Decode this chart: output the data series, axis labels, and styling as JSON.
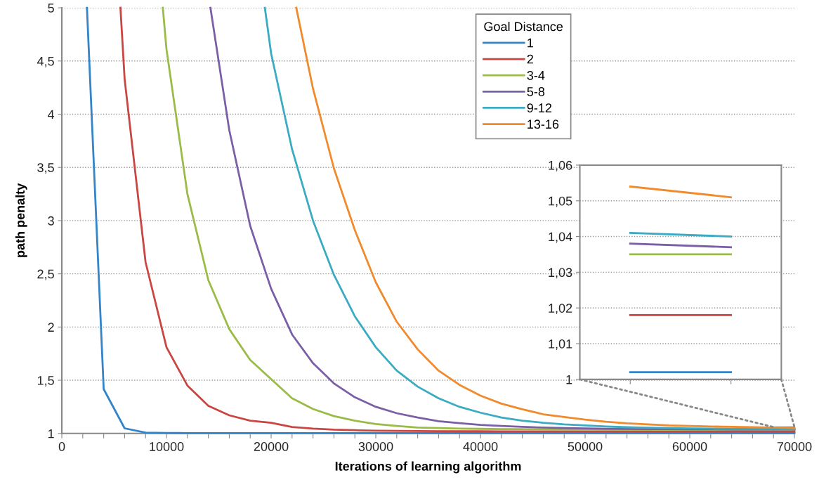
{
  "chart_data": [
    {
      "type": "line",
      "xlabel": "Iterations of learning algorithm",
      "ylabel": "path penalty",
      "legend_title": "Goal Distance",
      "legend": "top",
      "grid": "y",
      "line_style": "solid",
      "marker": "none",
      "xlim": [
        0,
        70000
      ],
      "ylim": [
        1,
        5
      ],
      "xticks": [
        0,
        {
          "value": 2000,
          "label": null
        },
        {
          "value": 4000,
          "label": null
        },
        {
          "value": 6000,
          "label": null
        },
        {
          "value": 8000,
          "label": null
        },
        10000,
        {
          "value": 12000,
          "label": null
        },
        {
          "value": 14000,
          "label": null
        },
        {
          "value": 16000,
          "label": null
        },
        {
          "value": 18000,
          "label": null
        },
        20000,
        {
          "value": 22000,
          "label": null
        },
        {
          "value": 24000,
          "label": null
        },
        {
          "value": 26000,
          "label": null
        },
        {
          "value": 28000,
          "label": null
        },
        30000,
        {
          "value": 32000,
          "label": null
        },
        {
          "value": 34000,
          "label": null
        },
        {
          "value": 36000,
          "label": null
        },
        {
          "value": 38000,
          "label": null
        },
        40000,
        {
          "value": 42000,
          "label": null
        },
        {
          "value": 44000,
          "label": null
        },
        {
          "value": 46000,
          "label": null
        },
        {
          "value": 48000,
          "label": null
        },
        50000,
        {
          "value": 52000,
          "label": null
        },
        {
          "value": 54000,
          "label": null
        },
        {
          "value": 56000,
          "label": null
        },
        {
          "value": 58000,
          "label": null
        },
        60000,
        {
          "value": 62000,
          "label": null
        },
        {
          "value": 64000,
          "label": null
        },
        {
          "value": 66000,
          "label": null
        },
        {
          "value": 68000,
          "label": null
        },
        70000
      ],
      "yticks": [
        1,
        {
          "value": 1.5,
          "label": "1,5"
        },
        2,
        {
          "value": 2.5,
          "label": "2,5"
        },
        3,
        {
          "value": 3.5,
          "label": "3,5"
        },
        4,
        {
          "value": 4.5,
          "label": "4,5"
        },
        5
      ],
      "series": [
        {
          "name": "1",
          "color": "#3384c8",
          "x": [
            2400,
            4000,
            6000,
            8000,
            10000,
            12000,
            14000,
            16000,
            18000,
            20000,
            22000,
            24000,
            26000,
            28000,
            30000,
            32000,
            34000,
            36000,
            38000,
            40000,
            42000,
            44000,
            46000,
            48000,
            50000,
            52000,
            54000,
            56000,
            58000,
            60000,
            62000,
            64000,
            66000,
            68000,
            70000
          ],
          "values": [
            5,
            1.416,
            1.048,
            1.008,
            1.004,
            1.003,
            1.002,
            1.002,
            1.002,
            1.002,
            1.002,
            1.002,
            1.002,
            1.002,
            1.002,
            1.002,
            1.002,
            1.002,
            1.002,
            1.002,
            1.002,
            1.002,
            1.002,
            1.002,
            1.002,
            1.002,
            1.002,
            1.002,
            1.002,
            1.002,
            1.002,
            1.002,
            1.002,
            1.002,
            1.002
          ]
        },
        {
          "name": "2",
          "color": "#c94643",
          "x": [
            5600,
            6000,
            8000,
            10000,
            12000,
            14000,
            16000,
            18000,
            20000,
            22000,
            24000,
            26000,
            28000,
            30000,
            32000,
            34000,
            36000,
            38000,
            40000,
            42000,
            44000,
            46000,
            48000,
            50000,
            52000,
            54000,
            56000,
            58000,
            60000,
            62000,
            64000,
            66000,
            68000,
            70000
          ],
          "values": [
            5,
            4.33,
            2.61,
            1.81,
            1.45,
            1.26,
            1.17,
            1.12,
            1.1,
            1.06,
            1.045,
            1.035,
            1.03,
            1.026,
            1.024,
            1.022,
            1.021,
            1.02,
            1.02,
            1.019,
            1.019,
            1.019,
            1.019,
            1.019,
            1.019,
            1.019,
            1.019,
            1.019,
            1.019,
            1.019,
            1.019,
            1.019,
            1.018,
            1.018
          ]
        },
        {
          "name": "3-4",
          "color": "#9bbb47",
          "x": [
            9650,
            10000,
            12000,
            14000,
            16000,
            18000,
            20000,
            22000,
            24000,
            26000,
            28000,
            30000,
            32000,
            34000,
            36000,
            38000,
            40000,
            42000,
            44000,
            46000,
            48000,
            50000,
            52000,
            54000,
            56000,
            58000,
            60000,
            62000,
            64000,
            66000,
            68000,
            70000
          ],
          "values": [
            5,
            4.61,
            3.25,
            2.44,
            1.98,
            1.69,
            1.51,
            1.33,
            1.23,
            1.163,
            1.12,
            1.088,
            1.07,
            1.056,
            1.05,
            1.046,
            1.043,
            1.041,
            1.04,
            1.039,
            1.038,
            1.037,
            1.037,
            1.036,
            1.036,
            1.036,
            1.036,
            1.036,
            1.035,
            1.035,
            1.035,
            1.035
          ]
        },
        {
          "name": "5-8",
          "color": "#7b5fa6",
          "x": [
            14200,
            16000,
            18000,
            20000,
            22000,
            24000,
            26000,
            28000,
            30000,
            32000,
            34000,
            36000,
            38000,
            40000,
            42000,
            44000,
            46000,
            48000,
            50000,
            52000,
            54000,
            56000,
            58000,
            60000,
            62000,
            64000,
            66000,
            68000,
            70000
          ],
          "values": [
            5,
            3.85,
            2.95,
            2.36,
            1.93,
            1.66,
            1.47,
            1.34,
            1.25,
            1.19,
            1.15,
            1.115,
            1.096,
            1.08,
            1.07,
            1.062,
            1.055,
            1.05,
            1.047,
            1.044,
            1.042,
            1.041,
            1.04,
            1.039,
            1.039,
            1.038,
            1.038,
            1.038,
            1.037
          ]
        },
        {
          "name": "9-12",
          "color": "#3aabc2",
          "x": [
            19400,
            20000,
            22000,
            24000,
            26000,
            28000,
            30000,
            32000,
            34000,
            36000,
            38000,
            40000,
            42000,
            44000,
            46000,
            48000,
            50000,
            52000,
            54000,
            56000,
            58000,
            60000,
            62000,
            64000,
            66000,
            68000,
            70000
          ],
          "values": [
            5,
            4.57,
            3.67,
            3.0,
            2.49,
            2.1,
            1.81,
            1.59,
            1.44,
            1.33,
            1.25,
            1.195,
            1.15,
            1.12,
            1.1,
            1.085,
            1.075,
            1.065,
            1.058,
            1.053,
            1.05,
            1.047,
            1.045,
            1.043,
            1.042,
            1.042,
            1.04
          ]
        },
        {
          "name": "13-16",
          "color": "#f08a2c",
          "x": [
            22400,
            24000,
            26000,
            28000,
            30000,
            32000,
            34000,
            36000,
            38000,
            40000,
            42000,
            44000,
            46000,
            48000,
            50000,
            52000,
            54000,
            56000,
            58000,
            60000,
            62000,
            64000,
            66000,
            68000,
            70000
          ],
          "values": [
            5,
            4.24,
            3.49,
            2.91,
            2.42,
            2.05,
            1.79,
            1.59,
            1.456,
            1.355,
            1.28,
            1.227,
            1.18,
            1.155,
            1.13,
            1.11,
            1.095,
            1.085,
            1.075,
            1.07,
            1.065,
            1.062,
            1.058,
            1.055,
            1.05
          ]
        }
      ]
    },
    {
      "type": "line",
      "grid": "y",
      "line_style": "solid",
      "marker": "none",
      "tick_labels": "y",
      "ylim": [
        1,
        1.06
      ],
      "yticks": [
        1,
        {
          "value": 1.01,
          "label": "1,01"
        },
        {
          "value": 1.02,
          "label": "1,02"
        },
        {
          "value": 1.03,
          "label": "1,03"
        },
        {
          "value": 1.04,
          "label": "1,04"
        },
        {
          "value": 1.05,
          "label": "1,05"
        },
        {
          "value": 1.06,
          "label": "1,06"
        }
      ],
      "categories": [
        null,
        null
      ],
      "series": [
        {
          "color": "#3384c8",
          "values": [
            1.002,
            1.002
          ]
        },
        {
          "color": "#c94643",
          "values": [
            1.018,
            1.018
          ]
        },
        {
          "color": "#9bbb47",
          "values": [
            1.035,
            1.035
          ]
        },
        {
          "color": "#7b5fa6",
          "values": [
            1.038,
            1.037
          ]
        },
        {
          "color": "#3aabc2",
          "values": [
            1.041,
            1.04
          ]
        },
        {
          "color": "#f08a2c",
          "values": [
            1.054,
            1.051
          ]
        }
      ]
    }
  ]
}
